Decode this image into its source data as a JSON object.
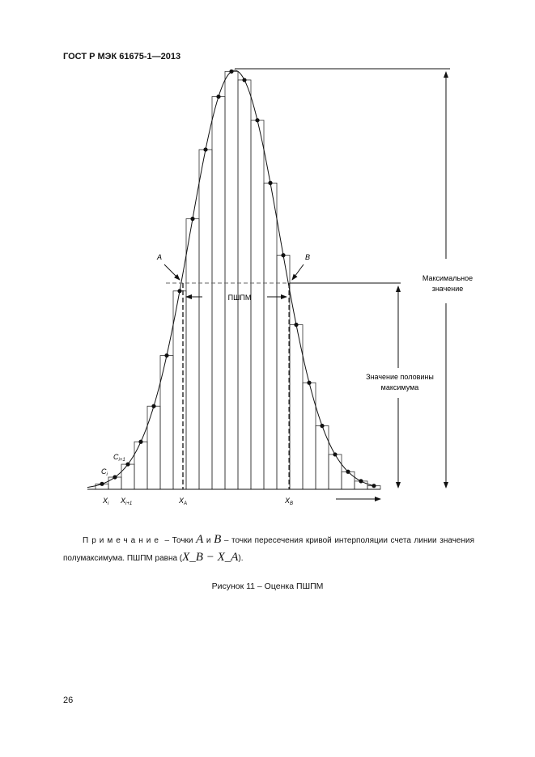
{
  "header": "ГОСТ Р МЭК 61675-1—2013",
  "figure": {
    "label_A": "A",
    "label_B": "B",
    "label_fwhm": "ПШПМ",
    "label_max": [
      "Максимальное",
      "значение"
    ],
    "label_half": [
      "Значение половины",
      "максимума"
    ],
    "label_ci": "C",
    "label_ci_sub": "i",
    "label_ci1": "C",
    "label_ci1_sub": "i+1",
    "label_xi": "X",
    "label_xi_sub": "i",
    "label_xi1": "X",
    "label_xi1_sub": "i+1",
    "label_xa": "X",
    "label_xa_sub": "A",
    "label_xb": "X",
    "label_xb_sub": "B"
  },
  "note": {
    "prefix": "Примечание",
    "t1": " – Точки ",
    "A": "A",
    "and": " и ",
    "B": "B",
    "t2": " – точки пересечения кривой интерполяции счета линии значения полумаксимума. ПШПМ равна (",
    "expr": "X_B − X_A",
    "t3": ")."
  },
  "caption": "Рисунок 11 – Оценка ПШПМ",
  "page_number": "26"
}
